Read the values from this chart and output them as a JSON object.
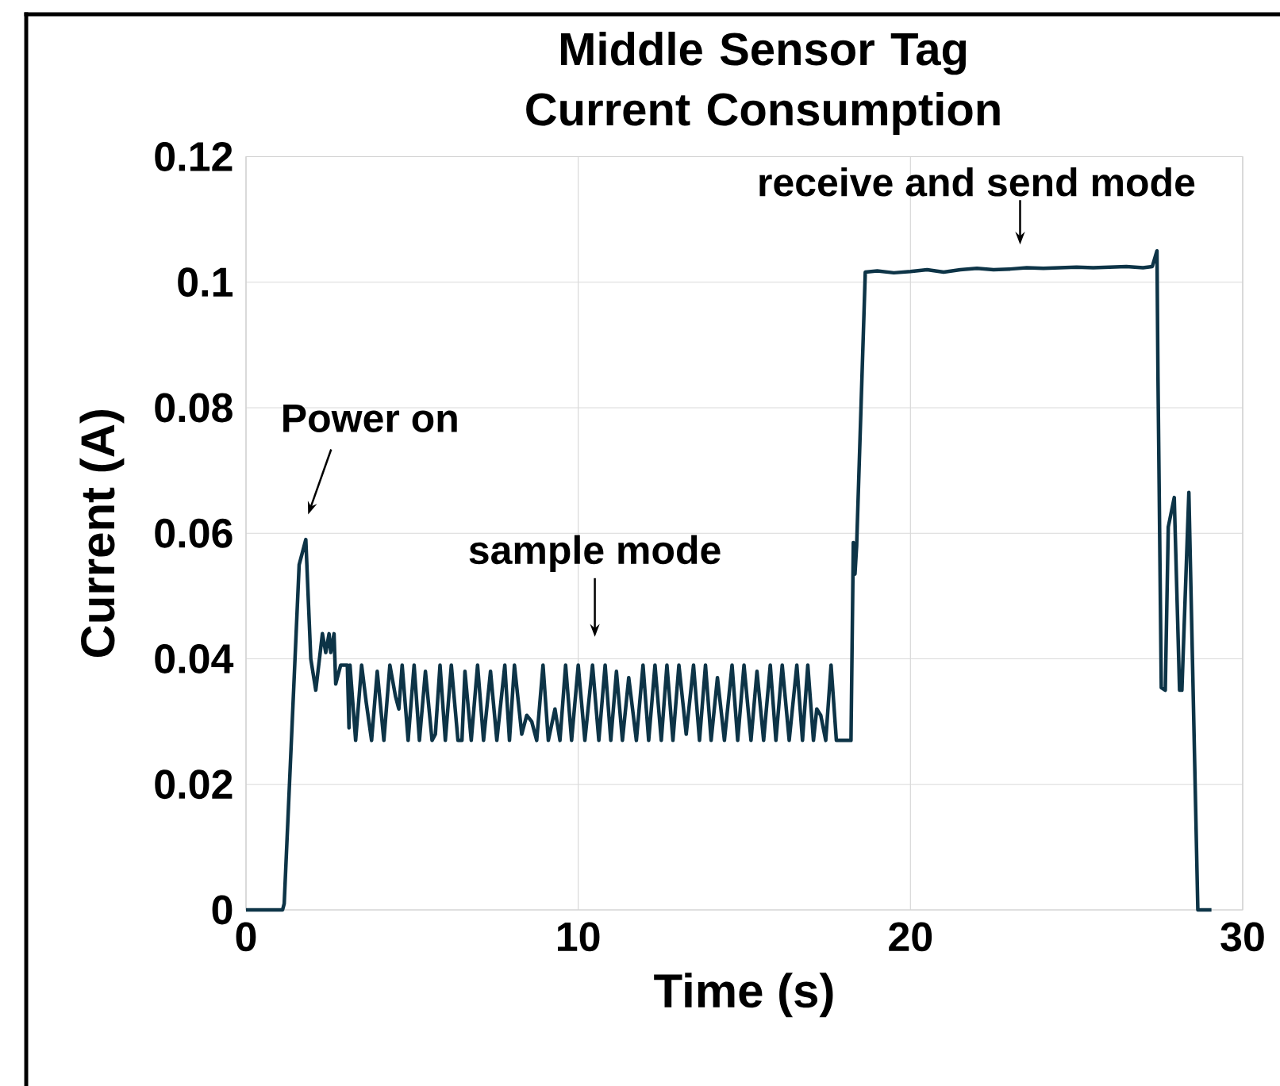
{
  "chart_data": {
    "type": "line",
    "title": "Middle Sensor Tag Current Consumption",
    "xlabel": "Time (s)",
    "ylabel": "Current (A)",
    "xlim": [
      0,
      30
    ],
    "ylim": [
      0,
      0.12
    ],
    "xticks": [
      0,
      10,
      20,
      30
    ],
    "yticks": [
      0,
      0.02,
      0.04,
      0.06,
      0.08,
      0.1,
      0.12
    ],
    "grid": true,
    "marker": "none",
    "line_style": "solid",
    "annotations": [
      "Power on",
      "sample mode",
      "receive and send mode"
    ],
    "series": [
      {
        "color": "#0d3447",
        "x": [
          0,
          1.1,
          1.15,
          1.6,
          1.8,
          1.95,
          2.1,
          2.3,
          2.4,
          2.5,
          2.55,
          2.65,
          2.7,
          2.85,
          3.05,
          3.1,
          3.13,
          3.3,
          3.48,
          3.62,
          3.78,
          3.95,
          4.15,
          4.33,
          4.5,
          4.6,
          4.7,
          4.88,
          5.06,
          5.22,
          5.4,
          5.6,
          5.7,
          5.84,
          6.0,
          6.18,
          6.38,
          6.5,
          6.59,
          6.78,
          6.97,
          7.15,
          7.36,
          7.55,
          7.79,
          7.93,
          8.08,
          8.3,
          8.45,
          8.6,
          8.75,
          8.94,
          9.1,
          9.3,
          9.45,
          9.62,
          9.8,
          10.0,
          10.2,
          10.43,
          10.62,
          10.81,
          10.98,
          11.15,
          11.33,
          11.52,
          11.75,
          11.95,
          12.12,
          12.31,
          12.5,
          12.67,
          12.85,
          13.03,
          13.25,
          13.47,
          13.65,
          13.83,
          14.0,
          14.19,
          14.4,
          14.63,
          14.8,
          14.99,
          15.2,
          15.38,
          15.58,
          15.78,
          15.95,
          16.14,
          16.35,
          16.58,
          16.75,
          16.91,
          17.08,
          17.18,
          17.3,
          17.45,
          17.61,
          17.77,
          18.21,
          18.28,
          18.33,
          18.38,
          18.64,
          19.0,
          19.5,
          20.0,
          20.5,
          21.0,
          21.5,
          22.0,
          22.5,
          23.0,
          23.5,
          24.0,
          24.5,
          25.0,
          25.5,
          26.0,
          26.5,
          27.0,
          27.28,
          27.42,
          27.45,
          27.55,
          27.67,
          27.76,
          27.94,
          28.1,
          28.17,
          28.38,
          28.65,
          29.06
        ],
        "values": [
          0,
          0,
          0.001,
          0.055,
          0.059,
          0.04,
          0.035,
          0.044,
          0.041,
          0.044,
          0.041,
          0.044,
          0.036,
          0.039,
          0.039,
          0.029,
          0.039,
          0.027,
          0.039,
          0.033,
          0.027,
          0.038,
          0.027,
          0.039,
          0.034,
          0.032,
          0.039,
          0.027,
          0.039,
          0.027,
          0.038,
          0.027,
          0.028,
          0.039,
          0.027,
          0.039,
          0.027,
          0.027,
          0.038,
          0.027,
          0.039,
          0.027,
          0.038,
          0.027,
          0.039,
          0.027,
          0.039,
          0.028,
          0.031,
          0.03,
          0.027,
          0.039,
          0.027,
          0.032,
          0.027,
          0.039,
          0.027,
          0.039,
          0.027,
          0.039,
          0.027,
          0.039,
          0.027,
          0.038,
          0.027,
          0.037,
          0.027,
          0.039,
          0.027,
          0.039,
          0.027,
          0.039,
          0.027,
          0.039,
          0.028,
          0.039,
          0.027,
          0.039,
          0.027,
          0.037,
          0.027,
          0.039,
          0.027,
          0.039,
          0.027,
          0.038,
          0.027,
          0.039,
          0.027,
          0.039,
          0.027,
          0.039,
          0.027,
          0.039,
          0.027,
          0.032,
          0.031,
          0.027,
          0.039,
          0.027,
          0.027,
          0.0585,
          0.0535,
          0.058,
          0.1016,
          0.1018,
          0.1015,
          0.1017,
          0.102,
          0.1016,
          0.102,
          0.1022,
          0.102,
          0.1021,
          0.1023,
          0.1022,
          0.1023,
          0.1024,
          0.1023,
          0.1024,
          0.1025,
          0.1023,
          0.1025,
          0.105,
          0.085,
          0.0354,
          0.035,
          0.061,
          0.0657,
          0.035,
          0.035,
          0.0665,
          0,
          0
        ]
      }
    ]
  }
}
